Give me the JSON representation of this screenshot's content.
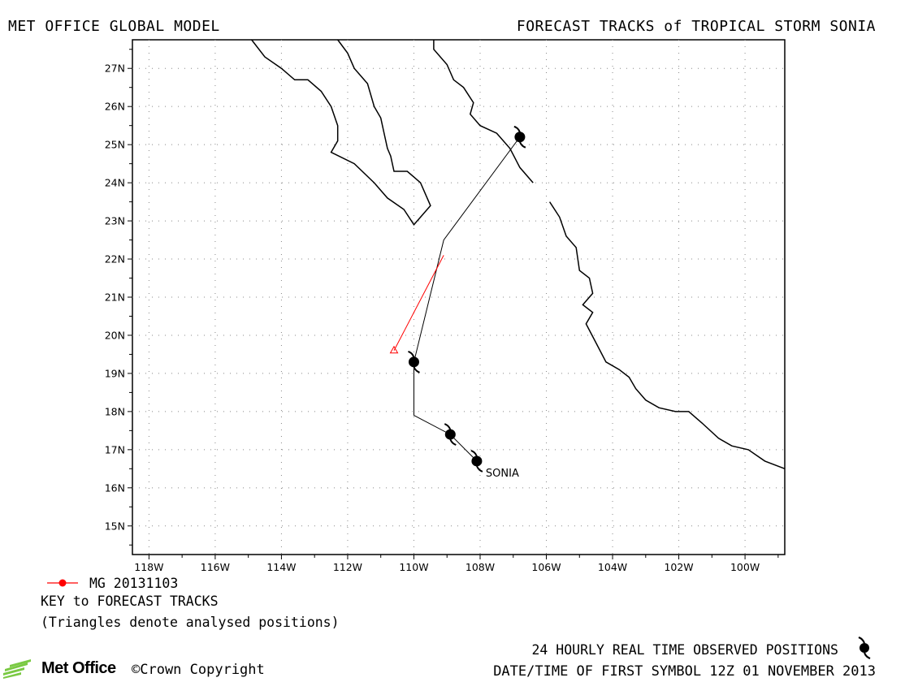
{
  "header": {
    "left_title": "MET OFFICE GLOBAL MODEL",
    "right_title": "FORECAST TRACKS of TROPICAL STORM SONIA"
  },
  "map": {
    "projection": "lat-lon",
    "lat_range": [
      14.25,
      27.75
    ],
    "lon_range": [
      -118.5,
      -98.8
    ],
    "lat_ticks": [
      "27N",
      "26N",
      "25N",
      "24N",
      "23N",
      "22N",
      "21N",
      "20N",
      "19N",
      "18N",
      "17N",
      "16N",
      "15N"
    ],
    "lon_ticks": [
      "118W",
      "116W",
      "114W",
      "112W",
      "110W",
      "108W",
      "106W",
      "104W",
      "102W",
      "100W"
    ],
    "grid": "dotted",
    "coastlines": [
      [
        [
          -114.9,
          27.75
        ],
        [
          -114.5,
          27.3
        ],
        [
          -114.0,
          27.0
        ],
        [
          -113.6,
          26.7
        ],
        [
          -113.2,
          26.7
        ],
        [
          -112.8,
          26.4
        ],
        [
          -112.5,
          26.0
        ],
        [
          -112.3,
          25.5
        ],
        [
          -112.3,
          25.1
        ],
        [
          -112.5,
          24.8
        ],
        [
          -111.8,
          24.5
        ],
        [
          -111.2,
          24.0
        ],
        [
          -110.8,
          23.6
        ],
        [
          -110.3,
          23.3
        ],
        [
          -110.0,
          22.9
        ],
        [
          -109.5,
          23.4
        ],
        [
          -109.8,
          24.0
        ],
        [
          -110.2,
          24.3
        ],
        [
          -110.6,
          24.3
        ],
        [
          -110.7,
          24.7
        ],
        [
          -110.8,
          24.9
        ],
        [
          -110.9,
          25.3
        ],
        [
          -111.0,
          25.7
        ],
        [
          -111.2,
          26.0
        ],
        [
          -111.4,
          26.6
        ],
        [
          -111.8,
          27.0
        ],
        [
          -112.0,
          27.4
        ],
        [
          -112.3,
          27.75
        ]
      ],
      [
        [
          -109.4,
          27.75
        ],
        [
          -109.4,
          27.5
        ],
        [
          -109.0,
          27.1
        ],
        [
          -108.8,
          26.7
        ],
        [
          -108.5,
          26.5
        ],
        [
          -108.2,
          26.1
        ],
        [
          -108.3,
          25.8
        ],
        [
          -108.0,
          25.5
        ],
        [
          -107.5,
          25.3
        ],
        [
          -107.1,
          24.9
        ],
        [
          -106.8,
          24.4
        ],
        [
          -106.4,
          24.0
        ]
      ],
      [
        [
          -105.9,
          23.5
        ],
        [
          -105.6,
          23.1
        ],
        [
          -105.4,
          22.6
        ],
        [
          -105.1,
          22.3
        ],
        [
          -105.0,
          21.7
        ],
        [
          -104.7,
          21.5
        ],
        [
          -104.6,
          21.1
        ],
        [
          -104.9,
          20.8
        ],
        [
          -104.6,
          20.6
        ],
        [
          -104.8,
          20.3
        ],
        [
          -104.5,
          19.8
        ],
        [
          -104.2,
          19.3
        ],
        [
          -103.8,
          19.1
        ],
        [
          -103.5,
          18.9
        ],
        [
          -103.3,
          18.6
        ],
        [
          -103.0,
          18.3
        ],
        [
          -102.6,
          18.1
        ],
        [
          -102.1,
          18.0
        ],
        [
          -101.7,
          18.0
        ],
        [
          -101.3,
          17.7
        ],
        [
          -100.8,
          17.3
        ],
        [
          -100.4,
          17.1
        ],
        [
          -99.9,
          17.0
        ],
        [
          -99.4,
          16.7
        ],
        [
          -98.8,
          16.5
        ]
      ]
    ]
  },
  "observed_track": {
    "storm_name": "SONIA",
    "positions": [
      [
        -108.1,
        16.7
      ],
      [
        -108.9,
        17.4
      ],
      [
        -110.0,
        19.3
      ],
      [
        -106.8,
        25.2
      ]
    ],
    "path": [
      [
        -108.1,
        16.7
      ],
      [
        -108.9,
        17.4
      ],
      [
        -110.0,
        17.9
      ],
      [
        -110.0,
        19.3
      ],
      [
        -109.1,
        22.5
      ],
      [
        -106.8,
        25.2
      ]
    ]
  },
  "forecast_track": {
    "color": "#ff0000",
    "run": "MG 20131103",
    "start_analysed": [
      -110.6,
      19.6
    ],
    "end": [
      -109.1,
      22.1
    ]
  },
  "legend": {
    "run_label": "MG 20131103",
    "key_title": "KEY to FORECAST TRACKS",
    "note": "(Triangles denote analysed positions)"
  },
  "footer": {
    "observed_positions": "24 HOURLY REAL TIME OBSERVED POSITIONS",
    "date_time": "DATE/TIME OF FIRST SYMBOL 12Z 01 NOVEMBER 2013",
    "logo_text": "Met Office",
    "copyright": "©Crown Copyright"
  }
}
